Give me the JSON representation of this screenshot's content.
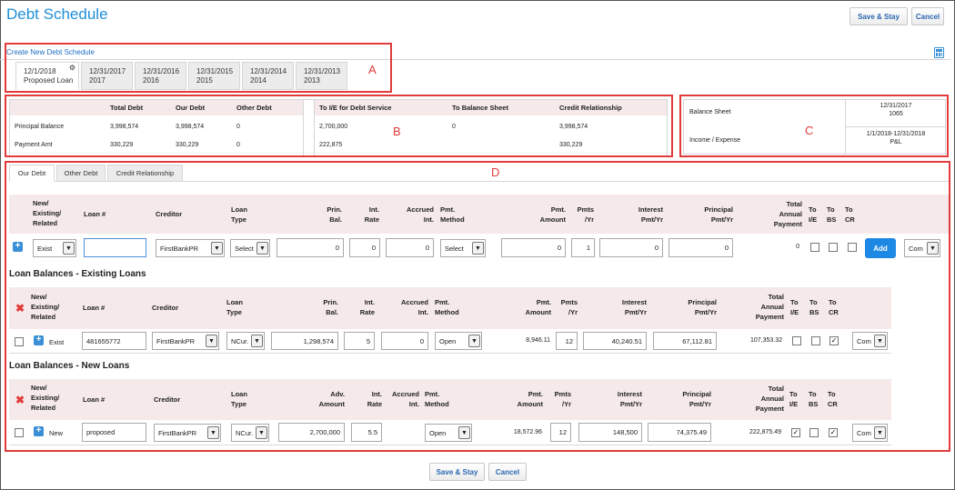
{
  "page": {
    "title": "Debt Schedule"
  },
  "top_buttons": {
    "save_stay": "Save & Stay",
    "cancel": "Cancel"
  },
  "bottom_buttons": {
    "save_stay": "Save & Stay",
    "cancel": "Cancel"
  },
  "annotations": {
    "a": "A",
    "b": "B",
    "c": "C",
    "d": "D"
  },
  "schedule": {
    "create_link": "Create New Debt Schedule",
    "tabs": [
      {
        "date": "12/1/2018",
        "name": "Proposed Loan"
      },
      {
        "date": "12/31/2017",
        "name": "2017"
      },
      {
        "date": "12/31/2016",
        "name": "2016"
      },
      {
        "date": "12/31/2015",
        "name": "2015"
      },
      {
        "date": "12/31/2014",
        "name": "2014"
      },
      {
        "date": "12/31/2013",
        "name": "2013"
      }
    ]
  },
  "summary": {
    "headers": [
      "Total Debt",
      "Our Debt",
      "Other Debt"
    ],
    "rows": [
      {
        "label": "Principal Balance",
        "total": "3,998,574",
        "ours": "3,998,574",
        "other": "0"
      },
      {
        "label": "Payment Amt",
        "total": "330,229",
        "ours": "330,229",
        "other": "0"
      }
    ],
    "right_headers": [
      "To I/E for Debt Service",
      "To Balance Sheet",
      "Credit Relationship"
    ],
    "right_rows": [
      {
        "ie": "2,700,000",
        "bs": "0",
        "cr": "3,998,574"
      },
      {
        "ie": "222,875",
        "bs": "",
        "cr": "330,229"
      }
    ]
  },
  "statement": {
    "rows": [
      {
        "label": "Balance Sheet",
        "line1": "12/31/2017",
        "line2": "1065"
      },
      {
        "label": "Income / Expense",
        "line1": "1/1/2018-12/31/2018",
        "line2": "P&L"
      }
    ]
  },
  "debt_tabs": [
    "Our Debt",
    "Other Debt",
    "Credit Relationship"
  ],
  "grid_headers": {
    "new_existing": "New/ Existing/ Related",
    "loan_no": "Loan #",
    "creditor": "Creditor",
    "loan_type": "Loan Type",
    "prin_bal": "Prin. Bal.",
    "adv_amount": "Adv. Amount",
    "int_rate": "Int. Rate",
    "accrued_int": "Accrued Int.",
    "pmt_method": "Pmt. Method",
    "pmt_amount": "Pmt. Amount",
    "pmts_yr": "Pmts /Yr",
    "interest_pmt_yr": "Interest Pmt/Yr",
    "principal_pmt_yr": "Principal Pmt/Yr",
    "total_annual": "Total Annual Payment",
    "to_ie": "To I/E",
    "to_bs": "To BS",
    "to_cr": "To CR"
  },
  "add_row": {
    "status": "Exist",
    "loan_no": "",
    "creditor": "FirstBankPR",
    "loan_type": "Select",
    "prin_bal": "0",
    "int_rate": "0",
    "accrued_int": "0",
    "pmt_method": "Select",
    "pmt_amount": "0",
    "pmts_yr": "1",
    "interest": "0",
    "principal": "0",
    "total": "0",
    "add_label": "Add",
    "com": "Com"
  },
  "existing": {
    "title": "Loan Balances - Existing Loans",
    "rows": [
      {
        "status": "Exist",
        "loan_no": "481655772",
        "creditor": "FirstBankPR",
        "loan_type": "NCur.",
        "prin_bal": "1,298,574",
        "int_rate": "5",
        "accrued_int": "0",
        "pmt_method": "Open",
        "pmt_amount": "8,946.11",
        "pmts_yr": "12",
        "interest": "40,240.51",
        "principal": "67,112.81",
        "total": "107,353.32",
        "com": "Com",
        "to_ie": false,
        "to_bs": false,
        "to_cr": true
      }
    ]
  },
  "new_loans": {
    "title": "Loan Balances - New Loans",
    "rows": [
      {
        "status": "New",
        "loan_no": "proposed",
        "creditor": "FirstBankPR",
        "loan_type": "NCur.",
        "adv_amount": "2,700,000",
        "int_rate": "5.5",
        "pmt_method": "Open",
        "pmt_amount": "18,572.96",
        "pmts_yr": "12",
        "interest": "148,500",
        "principal": "74,375.49",
        "total": "222,875.49",
        "com": "Com",
        "to_ie": true,
        "to_bs": false,
        "to_cr": true
      }
    ]
  },
  "icons": {
    "add": "plus-square-icon",
    "delete": "x-icon",
    "calculator": "calculator-icon",
    "gear": "gear-icon",
    "dropdown": "chevron-down-icon"
  },
  "colors": {
    "title": "#1f8fd8",
    "annotation": "#e13b3b",
    "add_button": "#1e88e5",
    "header_bg": "#f5e9e9"
  }
}
